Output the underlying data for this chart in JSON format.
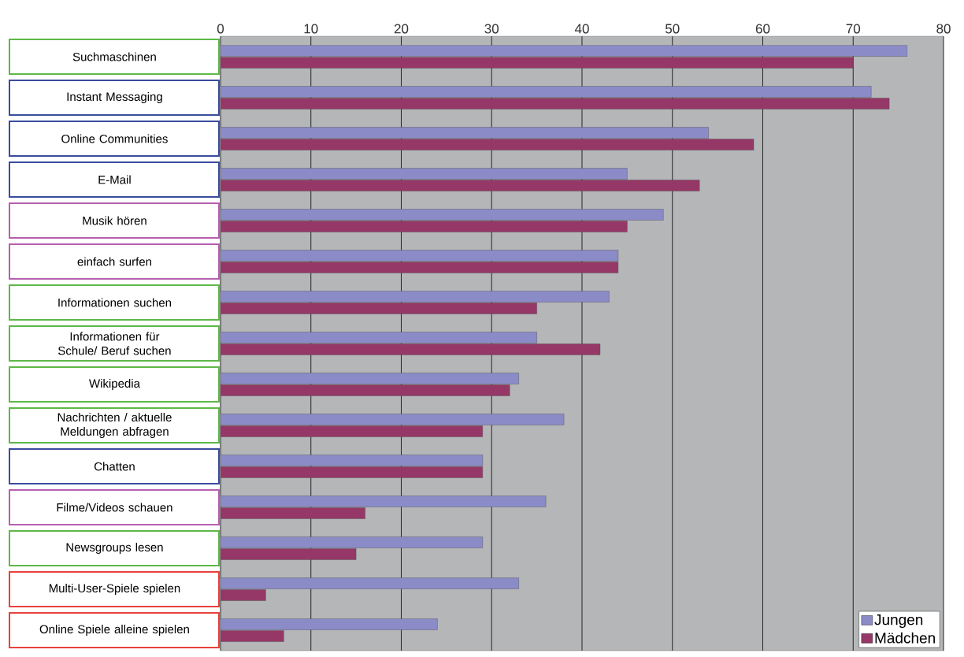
{
  "chart_data": {
    "type": "bar",
    "orientation": "horizontal",
    "categories": [
      "Suchmaschinen",
      "Instant Messaging",
      "Online Communities",
      "E-Mail",
      "Musik hören",
      "einfach surfen",
      "Informationen suchen",
      "Informationen für Schule/ Beruf suchen",
      "Wikipedia",
      "Nachrichten / aktuelle Meldungen abfragen",
      "Chatten",
      "Filme/Videos schauen",
      "Newsgroups lesen",
      "Multi-User-Spiele spielen",
      "Online Spiele alleine spielen"
    ],
    "series": [
      {
        "name": "Jungen",
        "color": "#8b8bc8",
        "values": [
          76,
          72,
          54,
          45,
          49,
          44,
          43,
          35,
          33,
          38,
          29,
          36,
          29,
          33,
          24
        ]
      },
      {
        "name": "Mädchen",
        "color": "#953867",
        "values": [
          70,
          74,
          59,
          53,
          45,
          44,
          35,
          42,
          32,
          29,
          29,
          16,
          15,
          5,
          7
        ]
      }
    ],
    "xlim": [
      0,
      80
    ],
    "xticks": [
      0,
      10,
      20,
      30,
      40,
      50,
      60,
      70,
      80
    ],
    "grid": "x",
    "legend": "bottom right"
  }
}
